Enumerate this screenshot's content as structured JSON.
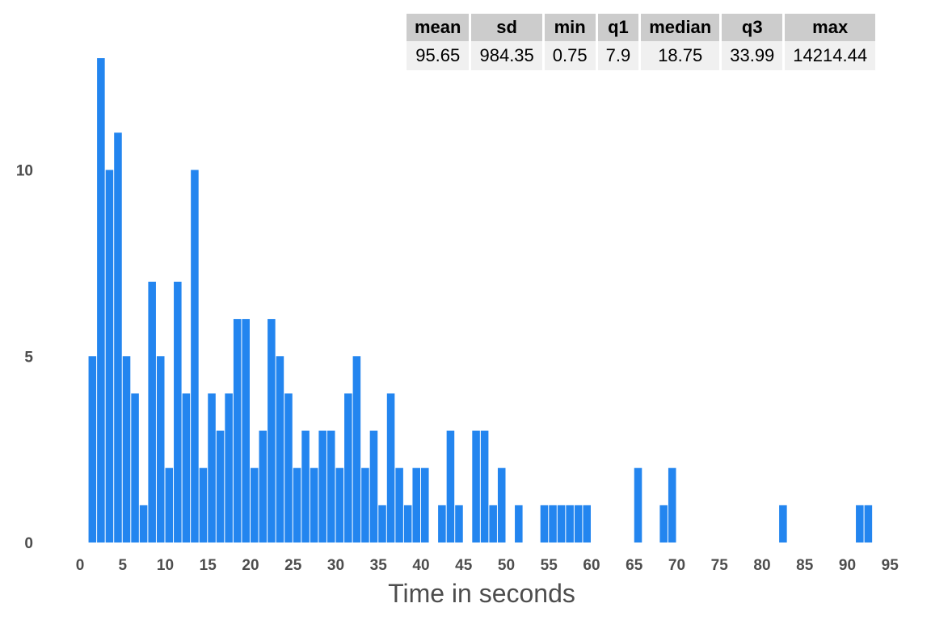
{
  "chart_data": {
    "type": "bar",
    "title": "",
    "xlabel": "Time in seconds",
    "ylabel": "",
    "bin_width": 1,
    "bin_starts": [
      1,
      2,
      3,
      4,
      5,
      6,
      7,
      8,
      9,
      10,
      11,
      12,
      13,
      14,
      15,
      16,
      17,
      18,
      19,
      20,
      21,
      22,
      23,
      24,
      25,
      26,
      27,
      28,
      29,
      30,
      31,
      32,
      33,
      34,
      35,
      36,
      37,
      38,
      39,
      40,
      41,
      42,
      43,
      44,
      45,
      46,
      47,
      48,
      49,
      50,
      51,
      52,
      53,
      54,
      55,
      56,
      57,
      58,
      59,
      60,
      61,
      62,
      63,
      64,
      65,
      66,
      67,
      68,
      69,
      70,
      71,
      72,
      73,
      74,
      75,
      76,
      77,
      78,
      79,
      80,
      81,
      82,
      83,
      84,
      85,
      86,
      87,
      88,
      89,
      90,
      91,
      92,
      93
    ],
    "values": [
      5,
      13,
      10,
      11,
      5,
      4,
      1,
      7,
      5,
      2,
      7,
      4,
      10,
      2,
      4,
      3,
      4,
      6,
      6,
      2,
      3,
      6,
      5,
      4,
      2,
      3,
      2,
      3,
      3,
      2,
      4,
      5,
      2,
      3,
      1,
      4,
      2,
      1,
      2,
      2,
      0,
      1,
      3,
      1,
      0,
      3,
      3,
      1,
      2,
      0,
      1,
      0,
      0,
      1,
      1,
      1,
      1,
      1,
      1,
      0,
      0,
      0,
      0,
      0,
      2,
      0,
      0,
      1,
      2,
      0,
      0,
      0,
      0,
      0,
      0,
      0,
      0,
      0,
      0,
      0,
      0,
      1,
      0,
      0,
      0,
      0,
      0,
      0,
      0,
      0,
      1,
      1,
      0
    ],
    "xlim": [
      0,
      95
    ],
    "ylim": [
      0,
      13
    ],
    "x_ticks": [
      "0",
      "5",
      "10",
      "15",
      "20",
      "25",
      "30",
      "35",
      "40",
      "45",
      "50",
      "55",
      "60",
      "65",
      "70",
      "75",
      "80",
      "85",
      "90",
      "95"
    ],
    "y_ticks": [
      "0",
      "5",
      "10"
    ],
    "bar_color": "#2385ef",
    "grid": false
  },
  "stats_table": {
    "headers": [
      "mean",
      "sd",
      "min",
      "q1",
      "median",
      "q3",
      "max"
    ],
    "values": [
      "95.65",
      "984.35",
      "0.75",
      "7.9",
      "18.75",
      "33.99",
      "14214.44"
    ],
    "header_bg": "#cccccc",
    "cell_bg": "#f0f0f0"
  }
}
